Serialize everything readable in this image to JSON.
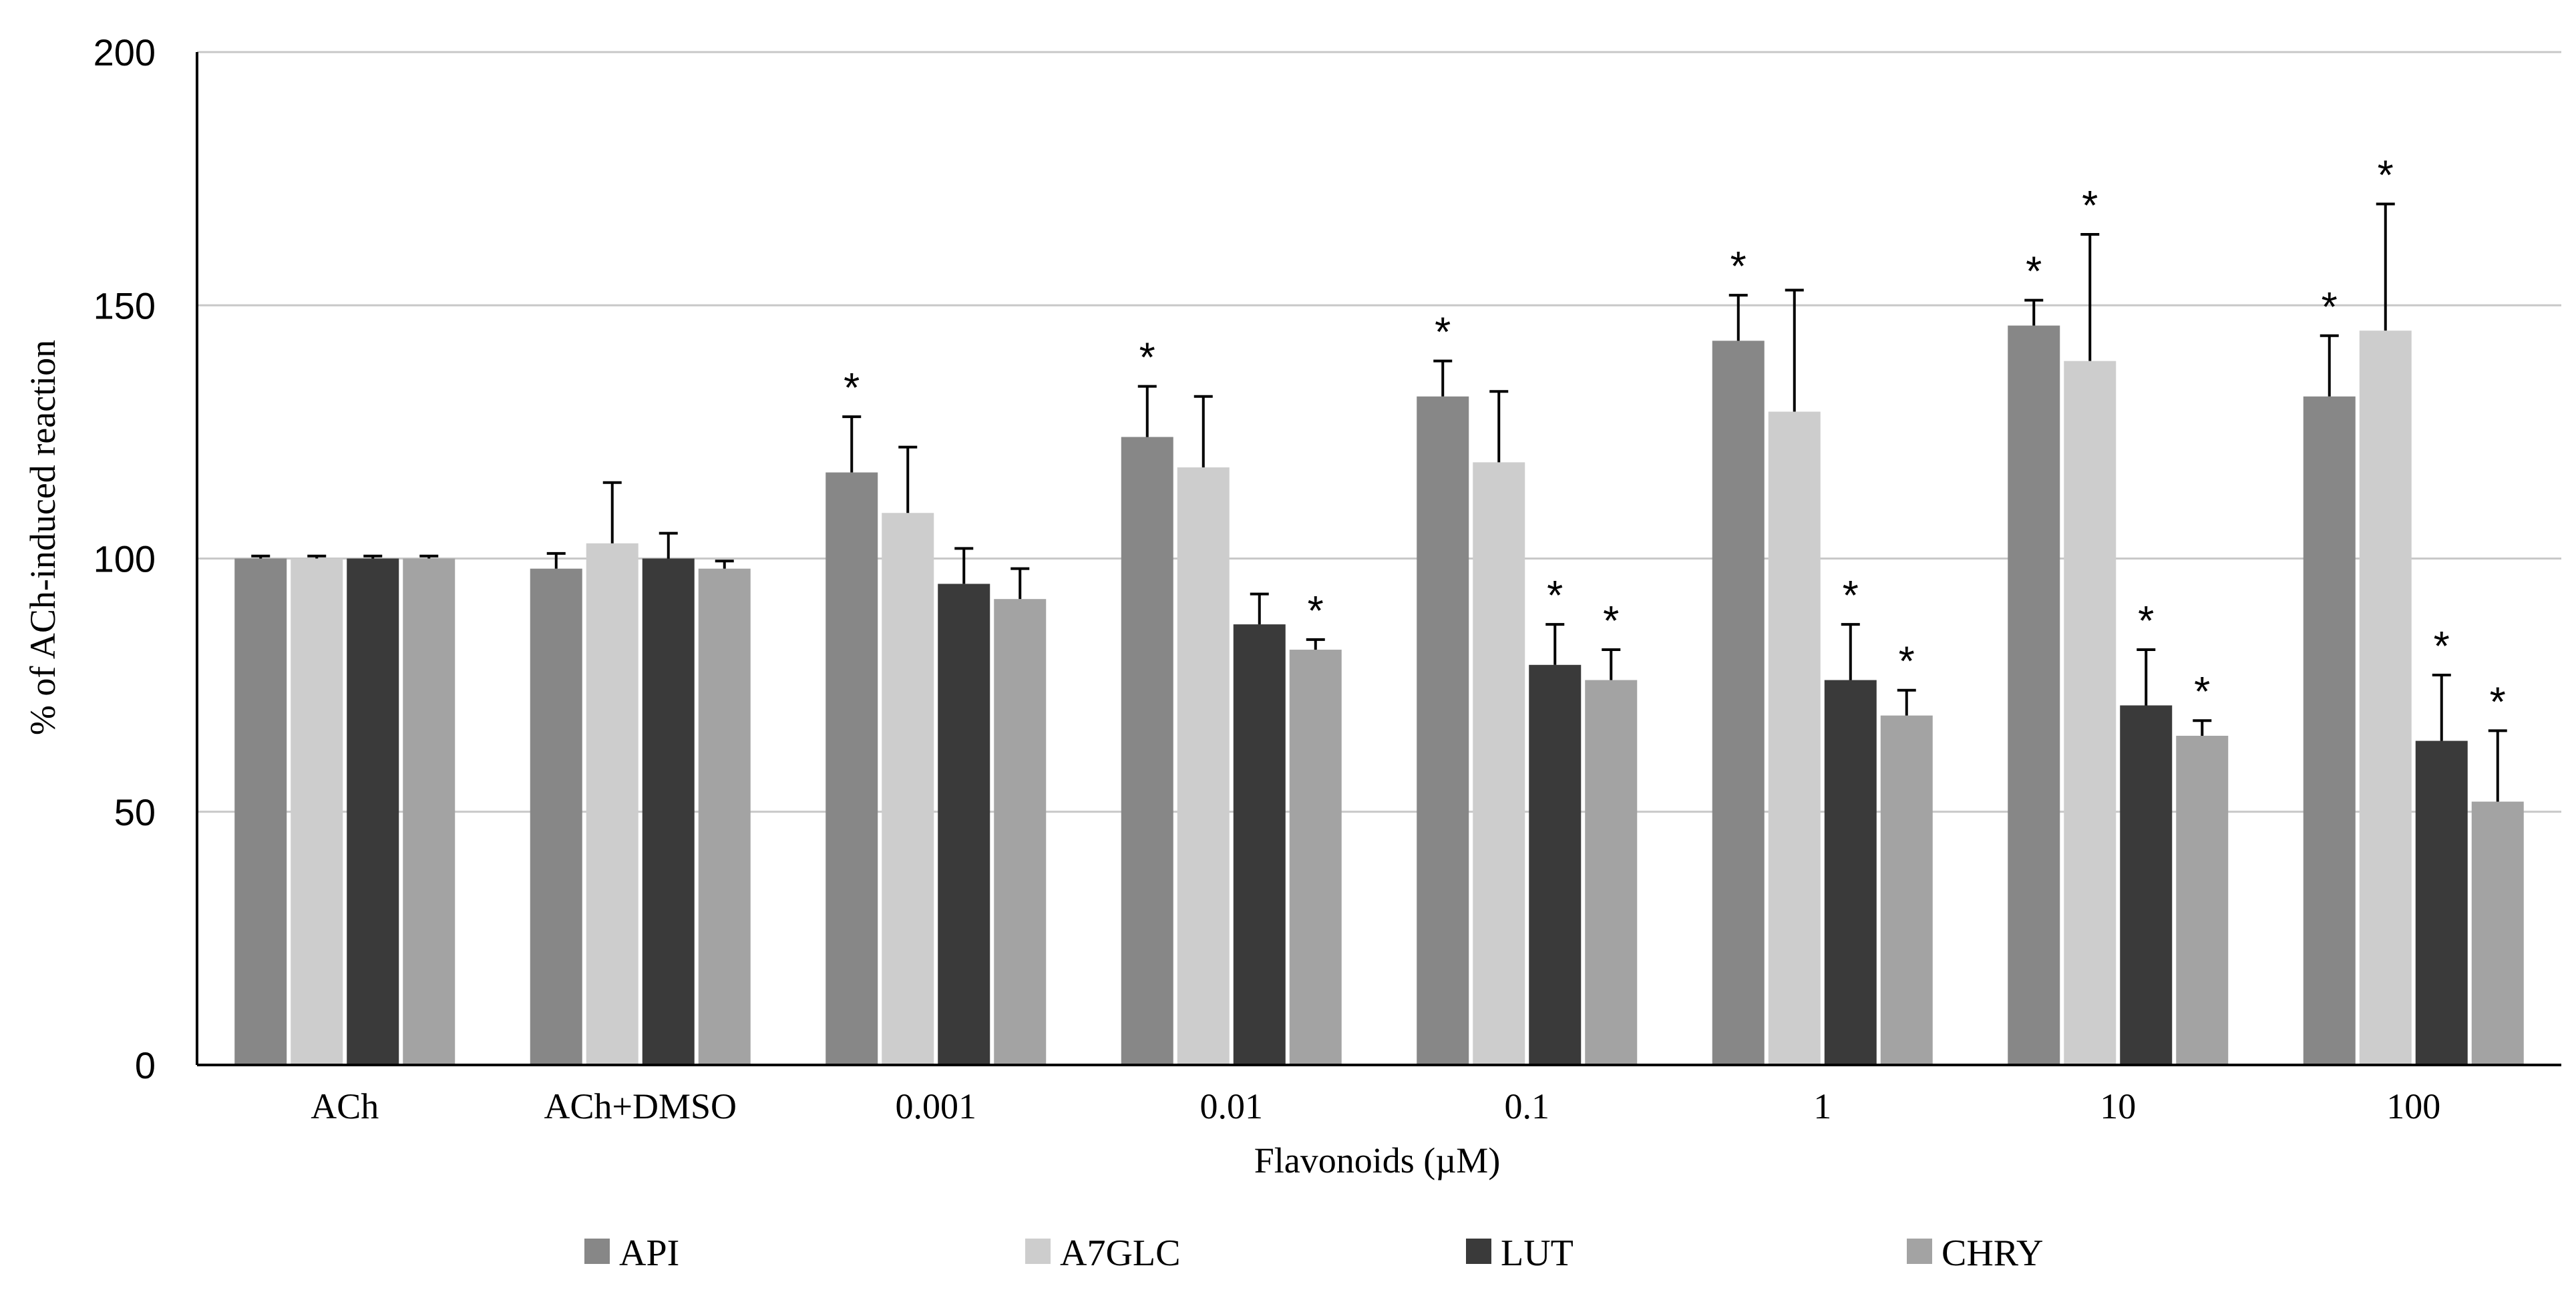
{
  "chart_data": {
    "type": "bar",
    "title": "",
    "xlabel": "Flavonoids (µM)",
    "ylabel": "% of ACh-induced reaction",
    "ylim": [
      0,
      200
    ],
    "yticks": [
      0,
      50,
      100,
      150,
      200
    ],
    "grid": true,
    "legend_position": "bottom",
    "categories": [
      "ACh",
      "ACh+DMSO",
      "0.001",
      "0.01",
      "0.1",
      "1",
      "10",
      "100"
    ],
    "series": [
      {
        "name": "API",
        "color": "#878787",
        "values": [
          100,
          98,
          117,
          124,
          132,
          143,
          146,
          132
        ],
        "errors": [
          0.5,
          3,
          11,
          10,
          7,
          9,
          5,
          12
        ],
        "significant": [
          false,
          false,
          true,
          true,
          true,
          true,
          true,
          true
        ]
      },
      {
        "name": "A7GLC",
        "color": "#cdcdcd",
        "values": [
          100,
          103,
          109,
          118,
          119,
          129,
          139,
          145
        ],
        "errors": [
          0.5,
          12,
          13,
          14,
          14,
          24,
          25,
          25
        ],
        "significant": [
          false,
          false,
          false,
          false,
          false,
          false,
          true,
          true
        ]
      },
      {
        "name": "LUT",
        "color": "#3a3a3a",
        "values": [
          100,
          100,
          95,
          87,
          79,
          76,
          71,
          64
        ],
        "errors": [
          0.5,
          5,
          7,
          6,
          8,
          11,
          11,
          13
        ],
        "significant": [
          false,
          false,
          false,
          false,
          true,
          true,
          true,
          true
        ]
      },
      {
        "name": "CHRY",
        "color": "#a3a3a3",
        "values": [
          100,
          98,
          92,
          82,
          76,
          69,
          65,
          52
        ],
        "errors": [
          0.5,
          1.5,
          6,
          2,
          6,
          5,
          3,
          14
        ],
        "significant": [
          false,
          false,
          false,
          true,
          true,
          true,
          true,
          true
        ]
      }
    ],
    "significance_symbol": "*"
  }
}
